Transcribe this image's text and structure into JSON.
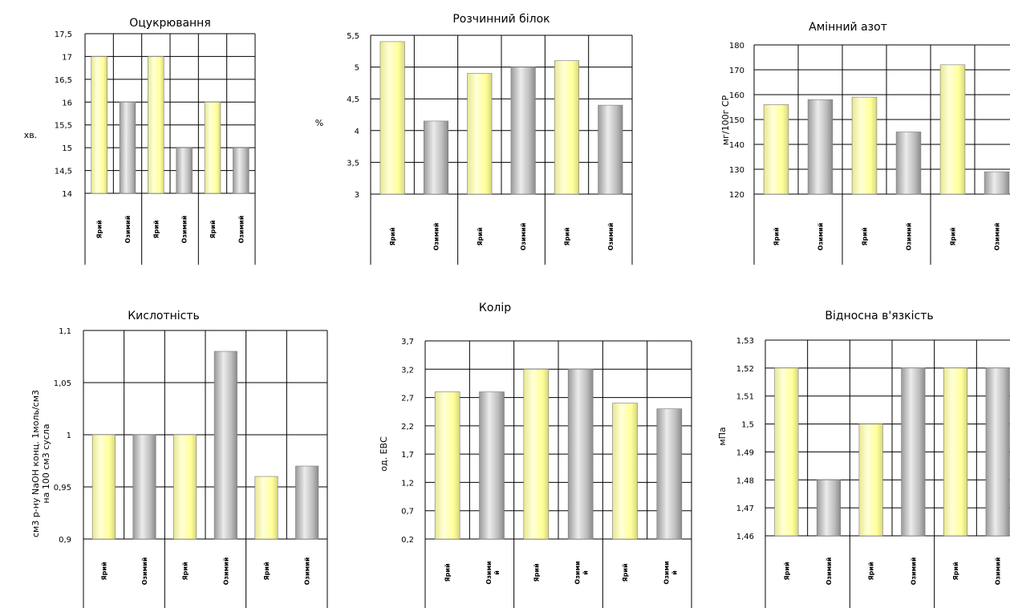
{
  "chart_data": [
    {
      "type": "bar",
      "title": "Оцукрювання",
      "ylabel": "хв.",
      "categories": [
        "Ярий",
        "Озимий",
        "Ярий",
        "Озимий",
        "Ярий",
        "Озимий"
      ],
      "values": [
        17,
        16,
        17,
        15,
        16,
        15
      ],
      "ylim": [
        14,
        17.5
      ],
      "yticks": [
        "17,5",
        "17",
        "16,5",
        "16",
        "15,5",
        "15",
        "14,5",
        "14"
      ],
      "grid": true
    },
    {
      "type": "bar",
      "title": "Розчинний білок",
      "ylabel": "%",
      "categories": [
        "Ярий",
        "Озимий",
        "Ярий",
        "Озимий",
        "Ярий",
        "Озимий"
      ],
      "values": [
        5.4,
        4.15,
        4.9,
        5.0,
        5.1,
        4.4
      ],
      "ylim": [
        3,
        5.5
      ],
      "yticks": [
        "5,5",
        "5",
        "4,5",
        "4",
        "3,5",
        "3"
      ],
      "grid": true
    },
    {
      "type": "bar",
      "title": "Амінний азот",
      "ylabel": "мг/100г СР",
      "categories": [
        "Ярий",
        "Озимий",
        "Ярий",
        "Озимий",
        "Ярий",
        "Озимий"
      ],
      "values": [
        156,
        158,
        159,
        145,
        172,
        129
      ],
      "ylim": [
        120,
        180
      ],
      "yticks": [
        "180",
        "170",
        "160",
        "150",
        "140",
        "130",
        "120"
      ],
      "grid": true
    },
    {
      "type": "bar",
      "title": "Кислотність",
      "ylabel": "см3 р-ну NaOH конц. 1моль/см3 на 100 см3 сусла",
      "categories": [
        "Ярий",
        "Озимий",
        "Ярий",
        "Озимий",
        "Ярий",
        "Озимий"
      ],
      "values": [
        1.0,
        1.0,
        1.0,
        1.08,
        0.96,
        0.97
      ],
      "ylim": [
        0.9,
        1.1
      ],
      "yticks": [
        "1,1",
        "1,05",
        "1",
        "0,95",
        "0,9"
      ],
      "grid": true
    },
    {
      "type": "bar",
      "title": "Колір",
      "ylabel": "од. ЕВС",
      "categories": [
        "Ярий",
        "Озимий",
        "Ярий",
        "Озимий",
        "Ярий",
        "Озимий"
      ],
      "values": [
        2.8,
        2.8,
        3.2,
        3.2,
        2.6,
        2.5
      ],
      "ylim": [
        0.2,
        3.7
      ],
      "yticks": [
        "3,7",
        "3,2",
        "2,7",
        "2,2",
        "1,7",
        "1,2",
        "0,7",
        "0,2"
      ],
      "grid": true
    },
    {
      "type": "bar",
      "title": "Відносна в'язкість",
      "ylabel": "мПа",
      "categories": [
        "Ярий",
        "Озимий",
        "Ярий",
        "Озимий",
        "Ярий",
        "Озимий"
      ],
      "values": [
        1.52,
        1.48,
        1.5,
        1.52,
        1.52,
        1.52
      ],
      "ylim": [
        1.46,
        1.53
      ],
      "yticks": [
        "1,53",
        "1,52",
        "1,51",
        "1,5",
        "1,49",
        "1,48",
        "1,47",
        "1,46"
      ],
      "grid": true
    }
  ],
  "colors": {
    "yaryi": "#ffff99",
    "ozymyi": "#b8b8b8",
    "grid": "#000000"
  }
}
